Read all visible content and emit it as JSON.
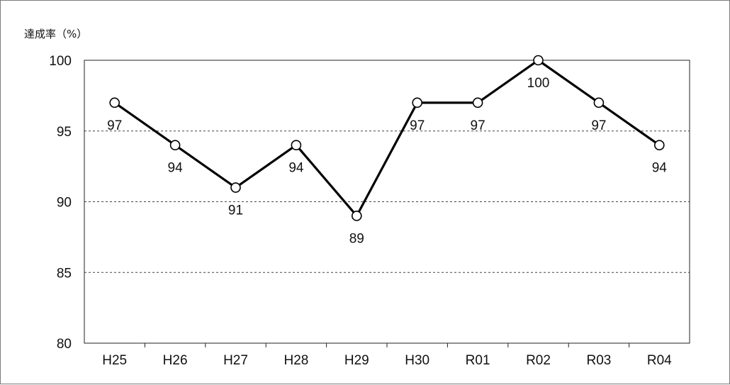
{
  "chart_data": {
    "type": "line",
    "title": "",
    "xlabel": "",
    "ylabel": "達成率（%）",
    "categories": [
      "H25",
      "H26",
      "H27",
      "H28",
      "H29",
      "H30",
      "R01",
      "R02",
      "R03",
      "R04"
    ],
    "series": [
      {
        "values": [
          97,
          94,
          91,
          94,
          89,
          97,
          97,
          100,
          97,
          94
        ],
        "data_labels": [
          "97",
          "94",
          "91",
          "94",
          "89",
          "97",
          "97",
          "100",
          "97",
          "94"
        ],
        "color": "#000000",
        "marker": "circle-open"
      }
    ],
    "ylim": [
      80,
      100
    ],
    "yticks": [
      80,
      85,
      90,
      95,
      100
    ],
    "grid": "dashed-horizontal",
    "legend": "none"
  }
}
